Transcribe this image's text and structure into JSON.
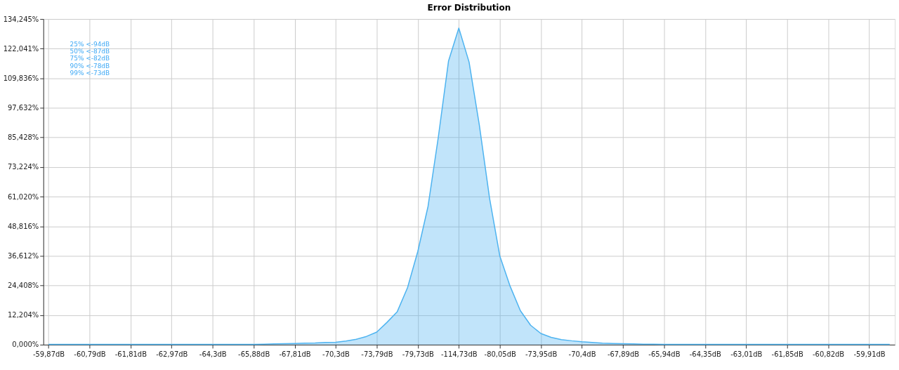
{
  "chart_data": {
    "type": "area",
    "title": "Error Distribution",
    "categories": [
      "-59,87dB",
      null,
      null,
      null,
      "-60,79dB",
      null,
      null,
      null,
      "-61,81dB",
      null,
      null,
      null,
      "-62,97dB",
      null,
      null,
      null,
      "-64,3dB",
      null,
      null,
      null,
      "-65,88dB",
      null,
      null,
      null,
      "-67,81dB",
      null,
      null,
      null,
      "-70,3dB",
      null,
      null,
      null,
      "-73,79dB",
      null,
      null,
      null,
      "-79,73dB",
      null,
      null,
      null,
      "-114,73dB",
      null,
      null,
      null,
      "-80,05dB",
      null,
      null,
      null,
      "-73,95dB",
      null,
      null,
      null,
      "-70,4dB",
      null,
      null,
      null,
      "-67,89dB",
      null,
      null,
      null,
      "-65,94dB",
      null,
      null,
      null,
      "-64,35dB",
      null,
      null,
      null,
      "-63,01dB",
      null,
      null,
      null,
      "-61,85dB",
      null,
      null,
      null,
      "-60,82dB",
      null,
      null,
      null,
      "-59,91dB",
      null,
      null
    ],
    "series": [
      {
        "color": "#4db3f0",
        "values": [
          0.1,
          0.1,
          0.1,
          0.1,
          0.1,
          0.1,
          0.1,
          0.1,
          0.1,
          0.1,
          0.1,
          0.1,
          0.1,
          0.1,
          0.1,
          0.1,
          0.1,
          0.1,
          0.1,
          0.1,
          0.1,
          0.2,
          0.3,
          0.4,
          0.5,
          0.6,
          0.7,
          0.9,
          1.0,
          1.5,
          2.2,
          3.4,
          5.2,
          9.2,
          13.6,
          23.5,
          38.4,
          57,
          85.5,
          117,
          130.5,
          116.5,
          90.5,
          60.3,
          36.5,
          24.1,
          14,
          8,
          4.6,
          3,
          2.1,
          1.6,
          1.2,
          0.9,
          0.6,
          0.5,
          0.4,
          0.3,
          0.2,
          0.2,
          0.1,
          0.1,
          0.1,
          0.1,
          0.1,
          0.1,
          0.1,
          0.1,
          0.1,
          0.1,
          0.1,
          0.1,
          0.1,
          0.1,
          0.1,
          0.1,
          0.1,
          0.1,
          0.1,
          0.1,
          0.1,
          0.1,
          0.1
        ]
      }
    ],
    "ylim": [
      0,
      134.245
    ],
    "yticks": [
      {
        "value": 0,
        "label": "0,000%"
      },
      {
        "value": 12.204,
        "label": "12,204%"
      },
      {
        "value": 24.408,
        "label": "24,408%"
      },
      {
        "value": 36.612,
        "label": "36,612%"
      },
      {
        "value": 48.816,
        "label": "48,816%"
      },
      {
        "value": 61.02,
        "label": "61,020%"
      },
      {
        "value": 73.224,
        "label": "73,224%"
      },
      {
        "value": 85.428,
        "label": "85,428%"
      },
      {
        "value": 97.632,
        "label": "97,632%"
      },
      {
        "value": 109.836,
        "label": "109,836%"
      },
      {
        "value": 122.041,
        "label": "122,041%"
      },
      {
        "value": 134.245,
        "label": "134,245%"
      }
    ],
    "grid": true,
    "annotations": [
      "25% <-94dB",
      "50% <-87dB",
      "75% <-82dB",
      "90% <-78dB",
      "99% <-73dB"
    ]
  }
}
